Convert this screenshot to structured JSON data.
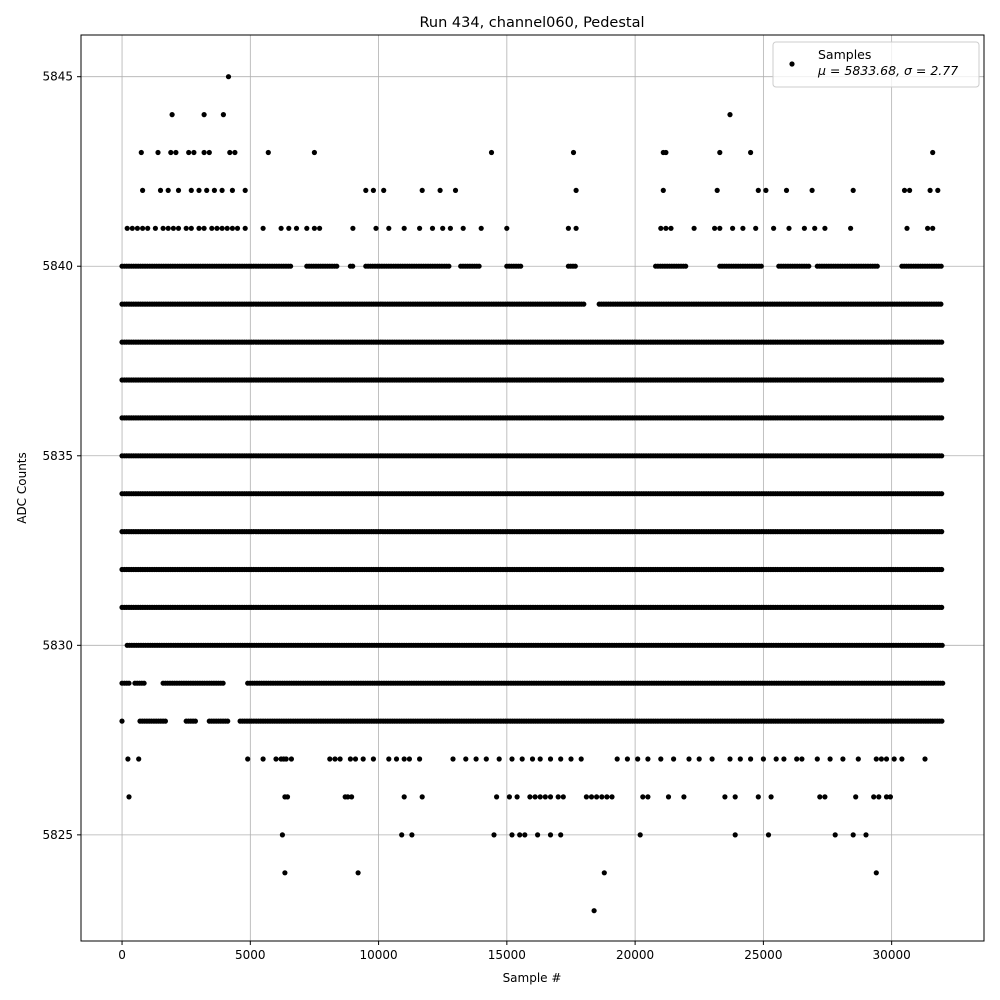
{
  "chart_data": {
    "type": "scatter",
    "title": "Run 434, channel060, Pedestal",
    "xlabel": "Sample #",
    "ylabel": "ADC Counts",
    "xlim": [
      -1600,
      33600
    ],
    "ylim": [
      5822.2,
      5846.1
    ],
    "xticks": [
      0,
      5000,
      10000,
      15000,
      20000,
      25000,
      30000
    ],
    "yticks": [
      5825,
      5830,
      5835,
      5840,
      5845
    ],
    "grid": true,
    "marker_color": "#000000",
    "legend": {
      "placement": "top-right",
      "series_name": "Samples",
      "stats_label": "μ = 5833.68, σ = 2.77"
    },
    "x_range": [
      0,
      32000
    ],
    "level_coverage": [
      {
        "y": 5828,
        "ranges": [
          [
            0,
            50
          ],
          [
            700,
            1700
          ],
          [
            2500,
            2900
          ],
          [
            3400,
            4200
          ],
          [
            4600,
            32000
          ]
        ]
      },
      {
        "y": 5829,
        "ranges": [
          [
            0,
            300
          ],
          [
            500,
            900
          ],
          [
            1600,
            4000
          ],
          [
            4900,
            32000
          ]
        ]
      },
      {
        "y": 5830,
        "ranges": [
          [
            200,
            32000
          ]
        ]
      },
      {
        "y": 5831,
        "ranges": [
          [
            0,
            32000
          ]
        ]
      },
      {
        "y": 5832,
        "ranges": [
          [
            0,
            32000
          ]
        ]
      },
      {
        "y": 5833,
        "ranges": [
          [
            0,
            32000
          ]
        ]
      },
      {
        "y": 5834,
        "ranges": [
          [
            0,
            32000
          ]
        ]
      },
      {
        "y": 5835,
        "ranges": [
          [
            0,
            32000
          ]
        ]
      },
      {
        "y": 5836,
        "ranges": [
          [
            0,
            32000
          ]
        ]
      },
      {
        "y": 5837,
        "ranges": [
          [
            0,
            32000
          ]
        ]
      },
      {
        "y": 5838,
        "ranges": [
          [
            0,
            32000
          ]
        ]
      },
      {
        "y": 5839,
        "ranges": [
          [
            0,
            18000
          ],
          [
            18600,
            32000
          ]
        ]
      },
      {
        "y": 5840,
        "ranges": [
          [
            0,
            6600
          ],
          [
            7200,
            8400
          ],
          [
            8900,
            9000
          ],
          [
            9500,
            12800
          ],
          [
            13200,
            14000
          ],
          [
            15000,
            15600
          ],
          [
            17400,
            17700
          ],
          [
            20800,
            22000
          ],
          [
            23300,
            25000
          ],
          [
            25600,
            26800
          ],
          [
            27100,
            29500
          ],
          [
            30400,
            32000
          ]
        ]
      }
    ],
    "sparse_points": [
      [
        230,
        5827
      ],
      [
        270,
        5826
      ],
      [
        650,
        5827
      ],
      [
        4900,
        5827
      ],
      [
        5500,
        5827
      ],
      [
        6000,
        5827
      ],
      [
        6200,
        5827
      ],
      [
        6300,
        5827
      ],
      [
        6400,
        5827
      ],
      [
        6600,
        5827
      ],
      [
        8100,
        5827
      ],
      [
        8300,
        5827
      ],
      [
        8500,
        5827
      ],
      [
        8900,
        5827
      ],
      [
        9100,
        5827
      ],
      [
        9400,
        5827
      ],
      [
        9800,
        5827
      ],
      [
        10400,
        5827
      ],
      [
        10700,
        5827
      ],
      [
        11000,
        5827
      ],
      [
        11200,
        5827
      ],
      [
        11600,
        5827
      ],
      [
        12900,
        5827
      ],
      [
        13400,
        5827
      ],
      [
        13800,
        5827
      ],
      [
        14200,
        5827
      ],
      [
        14700,
        5827
      ],
      [
        15200,
        5827
      ],
      [
        15600,
        5827
      ],
      [
        16000,
        5827
      ],
      [
        16300,
        5827
      ],
      [
        16700,
        5827
      ],
      [
        17100,
        5827
      ],
      [
        17500,
        5827
      ],
      [
        17900,
        5827
      ],
      [
        19300,
        5827
      ],
      [
        19700,
        5827
      ],
      [
        20100,
        5827
      ],
      [
        20500,
        5827
      ],
      [
        21000,
        5827
      ],
      [
        21500,
        5827
      ],
      [
        22100,
        5827
      ],
      [
        22500,
        5827
      ],
      [
        23000,
        5827
      ],
      [
        23700,
        5827
      ],
      [
        24100,
        5827
      ],
      [
        24500,
        5827
      ],
      [
        25000,
        5827
      ],
      [
        25500,
        5827
      ],
      [
        25800,
        5827
      ],
      [
        26300,
        5827
      ],
      [
        26500,
        5827
      ],
      [
        27100,
        5827
      ],
      [
        27600,
        5827
      ],
      [
        28100,
        5827
      ],
      [
        28700,
        5827
      ],
      [
        29400,
        5827
      ],
      [
        29600,
        5827
      ],
      [
        29800,
        5827
      ],
      [
        30100,
        5827
      ],
      [
        30400,
        5827
      ],
      [
        31300,
        5827
      ],
      [
        6350,
        5826
      ],
      [
        6450,
        5826
      ],
      [
        8700,
        5826
      ],
      [
        8800,
        5826
      ],
      [
        8950,
        5826
      ],
      [
        11000,
        5826
      ],
      [
        11700,
        5826
      ],
      [
        14600,
        5826
      ],
      [
        15100,
        5826
      ],
      [
        15400,
        5826
      ],
      [
        15900,
        5826
      ],
      [
        16100,
        5826
      ],
      [
        16300,
        5826
      ],
      [
        16500,
        5826
      ],
      [
        16700,
        5826
      ],
      [
        17000,
        5826
      ],
      [
        17200,
        5826
      ],
      [
        18100,
        5826
      ],
      [
        18300,
        5826
      ],
      [
        18500,
        5826
      ],
      [
        18700,
        5826
      ],
      [
        18900,
        5826
      ],
      [
        19100,
        5826
      ],
      [
        20300,
        5826
      ],
      [
        20500,
        5826
      ],
      [
        21300,
        5826
      ],
      [
        21900,
        5826
      ],
      [
        23500,
        5826
      ],
      [
        23900,
        5826
      ],
      [
        24800,
        5826
      ],
      [
        25300,
        5826
      ],
      [
        27200,
        5826
      ],
      [
        27400,
        5826
      ],
      [
        28600,
        5826
      ],
      [
        29300,
        5826
      ],
      [
        29500,
        5826
      ],
      [
        29800,
        5826
      ],
      [
        29950,
        5826
      ],
      [
        6250,
        5825
      ],
      [
        10900,
        5825
      ],
      [
        11300,
        5825
      ],
      [
        14500,
        5825
      ],
      [
        15200,
        5825
      ],
      [
        15500,
        5825
      ],
      [
        15700,
        5825
      ],
      [
        16200,
        5825
      ],
      [
        16700,
        5825
      ],
      [
        17100,
        5825
      ],
      [
        20200,
        5825
      ],
      [
        23900,
        5825
      ],
      [
        25200,
        5825
      ],
      [
        27800,
        5825
      ],
      [
        28500,
        5825
      ],
      [
        29000,
        5825
      ],
      [
        6350,
        5824
      ],
      [
        9200,
        5824
      ],
      [
        18800,
        5824
      ],
      [
        29400,
        5824
      ],
      [
        18400,
        5823
      ],
      [
        200,
        5841
      ],
      [
        400,
        5841
      ],
      [
        600,
        5841
      ],
      [
        800,
        5841
      ],
      [
        1000,
        5841
      ],
      [
        1300,
        5841
      ],
      [
        1600,
        5841
      ],
      [
        1800,
        5841
      ],
      [
        2000,
        5841
      ],
      [
        2200,
        5841
      ],
      [
        2500,
        5841
      ],
      [
        2700,
        5841
      ],
      [
        3000,
        5841
      ],
      [
        3200,
        5841
      ],
      [
        3500,
        5841
      ],
      [
        3700,
        5841
      ],
      [
        3900,
        5841
      ],
      [
        4100,
        5841
      ],
      [
        4300,
        5841
      ],
      [
        4500,
        5841
      ],
      [
        4800,
        5841
      ],
      [
        5500,
        5841
      ],
      [
        6200,
        5841
      ],
      [
        6500,
        5841
      ],
      [
        6800,
        5841
      ],
      [
        7200,
        5841
      ],
      [
        7500,
        5841
      ],
      [
        7700,
        5841
      ],
      [
        9000,
        5841
      ],
      [
        9900,
        5841
      ],
      [
        10400,
        5841
      ],
      [
        11000,
        5841
      ],
      [
        11600,
        5841
      ],
      [
        12100,
        5841
      ],
      [
        12500,
        5841
      ],
      [
        12800,
        5841
      ],
      [
        13300,
        5841
      ],
      [
        14000,
        5841
      ],
      [
        15000,
        5841
      ],
      [
        17400,
        5841
      ],
      [
        17700,
        5841
      ],
      [
        21000,
        5841
      ],
      [
        21200,
        5841
      ],
      [
        21400,
        5841
      ],
      [
        22300,
        5841
      ],
      [
        23100,
        5841
      ],
      [
        23300,
        5841
      ],
      [
        23800,
        5841
      ],
      [
        24200,
        5841
      ],
      [
        24700,
        5841
      ],
      [
        25400,
        5841
      ],
      [
        26000,
        5841
      ],
      [
        26600,
        5841
      ],
      [
        27000,
        5841
      ],
      [
        27400,
        5841
      ],
      [
        28400,
        5841
      ],
      [
        30600,
        5841
      ],
      [
        31400,
        5841
      ],
      [
        31600,
        5841
      ],
      [
        800,
        5842
      ],
      [
        1500,
        5842
      ],
      [
        1800,
        5842
      ],
      [
        2200,
        5842
      ],
      [
        2700,
        5842
      ],
      [
        3000,
        5842
      ],
      [
        3300,
        5842
      ],
      [
        3600,
        5842
      ],
      [
        3900,
        5842
      ],
      [
        4300,
        5842
      ],
      [
        4800,
        5842
      ],
      [
        9500,
        5842
      ],
      [
        9800,
        5842
      ],
      [
        10200,
        5842
      ],
      [
        11700,
        5842
      ],
      [
        12400,
        5842
      ],
      [
        13000,
        5842
      ],
      [
        17700,
        5842
      ],
      [
        21100,
        5842
      ],
      [
        23200,
        5842
      ],
      [
        24800,
        5842
      ],
      [
        25100,
        5842
      ],
      [
        25900,
        5842
      ],
      [
        26900,
        5842
      ],
      [
        28500,
        5842
      ],
      [
        30500,
        5842
      ],
      [
        30700,
        5842
      ],
      [
        31500,
        5842
      ],
      [
        31800,
        5842
      ],
      [
        750,
        5843
      ],
      [
        1400,
        5843
      ],
      [
        1900,
        5843
      ],
      [
        2100,
        5843
      ],
      [
        2600,
        5843
      ],
      [
        2800,
        5843
      ],
      [
        3200,
        5843
      ],
      [
        3400,
        5843
      ],
      [
        4200,
        5843
      ],
      [
        4400,
        5843
      ],
      [
        5700,
        5843
      ],
      [
        7500,
        5843
      ],
      [
        14400,
        5843
      ],
      [
        17600,
        5843
      ],
      [
        21100,
        5843
      ],
      [
        21200,
        5843
      ],
      [
        23300,
        5843
      ],
      [
        24500,
        5843
      ],
      [
        31600,
        5843
      ],
      [
        1950,
        5844
      ],
      [
        3200,
        5844
      ],
      [
        3950,
        5844
      ],
      [
        23700,
        5844
      ],
      [
        4150,
        5845
      ]
    ]
  }
}
